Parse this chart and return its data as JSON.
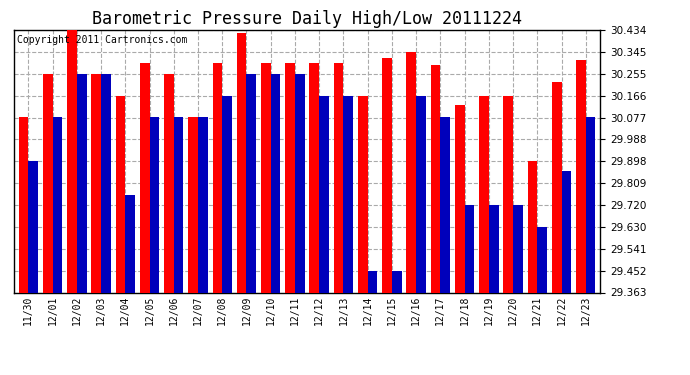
{
  "title": "Barometric Pressure Daily High/Low 20111224",
  "copyright": "Copyright 2011 Cartronics.com",
  "categories": [
    "11/30",
    "12/01",
    "12/02",
    "12/03",
    "12/04",
    "12/05",
    "12/06",
    "12/07",
    "12/08",
    "12/09",
    "12/10",
    "12/11",
    "12/12",
    "12/13",
    "12/14",
    "12/15",
    "12/16",
    "12/17",
    "12/18",
    "12/19",
    "12/20",
    "12/21",
    "12/22",
    "12/23"
  ],
  "highs": [
    30.077,
    30.255,
    30.434,
    30.255,
    30.166,
    30.3,
    30.255,
    30.077,
    30.3,
    30.42,
    30.3,
    30.3,
    30.3,
    30.3,
    30.166,
    30.32,
    30.345,
    30.29,
    30.13,
    30.166,
    30.166,
    29.898,
    30.22,
    30.31
  ],
  "lows": [
    29.898,
    30.077,
    30.255,
    30.255,
    29.76,
    30.077,
    30.077,
    30.077,
    30.166,
    30.255,
    30.255,
    30.255,
    30.166,
    30.166,
    29.452,
    29.452,
    30.166,
    30.077,
    29.72,
    29.72,
    29.72,
    29.63,
    29.857,
    30.077
  ],
  "high_color": "#ff0000",
  "low_color": "#0000bb",
  "background_color": "#ffffff",
  "plot_bg_color": "#ffffff",
  "ylim_min": 29.363,
  "ylim_max": 30.434,
  "yticks": [
    29.363,
    29.452,
    29.541,
    29.63,
    29.72,
    29.809,
    29.898,
    29.988,
    30.077,
    30.166,
    30.255,
    30.345,
    30.434
  ],
  "grid_color": "#aaaaaa",
  "title_fontsize": 12,
  "copyright_fontsize": 7,
  "bar_width": 0.4
}
